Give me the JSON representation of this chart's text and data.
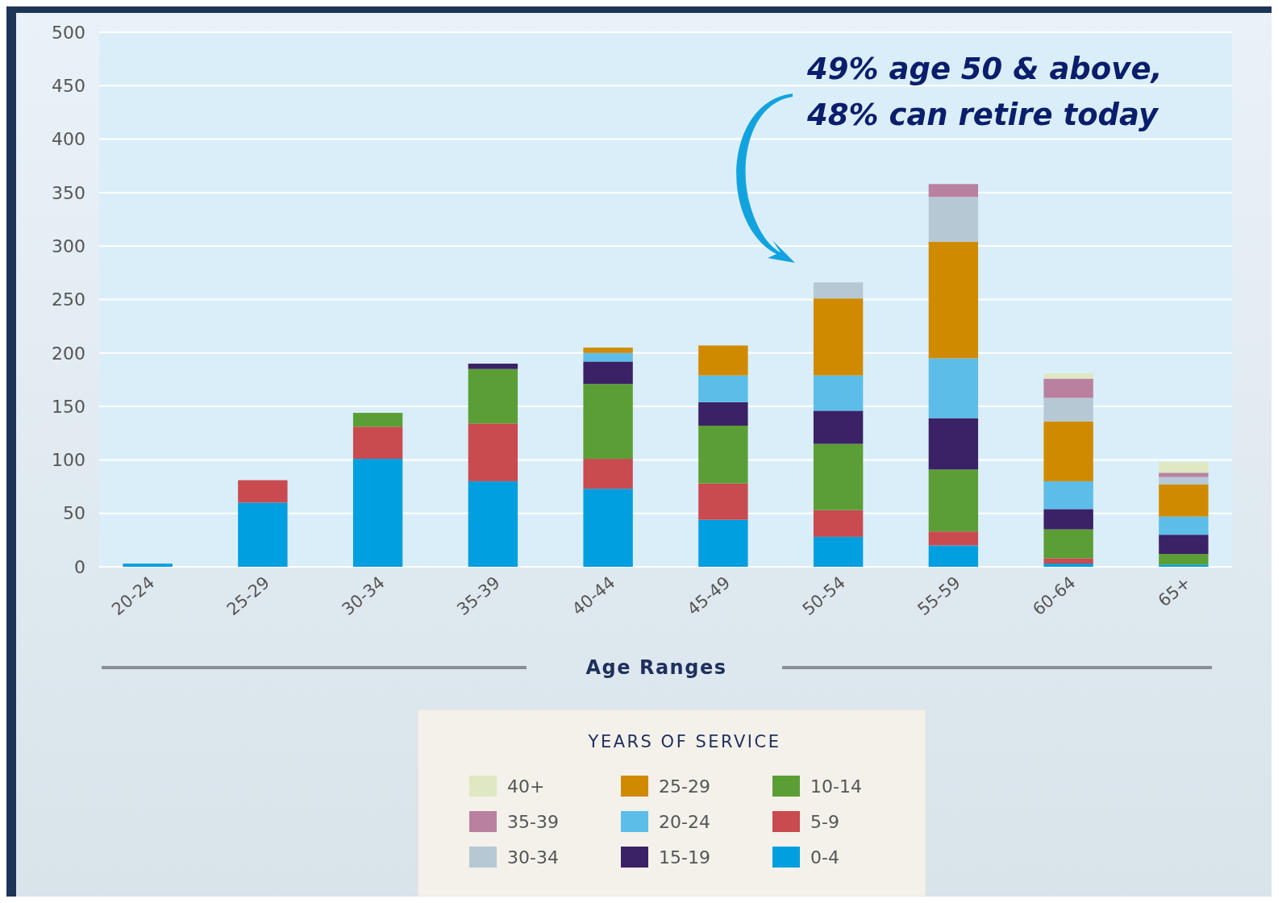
{
  "chart_data": {
    "type": "bar",
    "stacked": true,
    "xlabel": "Age Ranges",
    "legend_title": "YEARS OF SERVICE",
    "legend": "bottom",
    "grid": "y",
    "categories": [
      "20-24",
      "25-29",
      "30-34",
      "35-39",
      "40-44",
      "45-49",
      "50-54",
      "55-59",
      "60-64",
      "65+"
    ],
    "ylim": [
      0,
      500
    ],
    "yticks": [
      0,
      50,
      100,
      150,
      200,
      250,
      300,
      350,
      400,
      450,
      500
    ],
    "annotations": [
      "49% age 50 & above,",
      "48% can retire today"
    ],
    "series": [
      {
        "name": "0-4",
        "color": "#009fdf",
        "values": [
          3,
          60,
          101,
          80,
          73,
          44,
          28,
          20,
          3,
          2
        ]
      },
      {
        "name": "5-9",
        "color": "#c94a4f",
        "values": [
          null,
          21,
          30,
          54,
          28,
          34,
          25,
          13,
          5,
          null
        ]
      },
      {
        "name": "10-14",
        "color": "#5b9e35",
        "values": [
          null,
          null,
          13,
          51,
          70,
          54,
          62,
          58,
          27,
          10
        ]
      },
      {
        "name": "15-19",
        "color": "#3b2165",
        "values": [
          null,
          null,
          null,
          5,
          21,
          22,
          31,
          48,
          19,
          18
        ]
      },
      {
        "name": "20-24",
        "color": "#5bbde8",
        "values": [
          null,
          null,
          null,
          null,
          8,
          25,
          33,
          56,
          26,
          17
        ]
      },
      {
        "name": "25-29",
        "color": "#d08a00",
        "values": [
          null,
          null,
          null,
          null,
          5,
          28,
          72,
          109,
          56,
          30
        ]
      },
      {
        "name": "30-34",
        "color": "#b6c8d4",
        "values": [
          null,
          null,
          null,
          null,
          null,
          null,
          15,
          42,
          22,
          7
        ]
      },
      {
        "name": "35-39",
        "color": "#b9809f",
        "values": [
          null,
          null,
          null,
          null,
          null,
          null,
          null,
          12,
          18,
          4
        ]
      },
      {
        "name": "40+",
        "color": "#dfe8c2",
        "values": [
          null,
          null,
          null,
          null,
          null,
          null,
          null,
          null,
          5,
          10
        ]
      }
    ]
  }
}
